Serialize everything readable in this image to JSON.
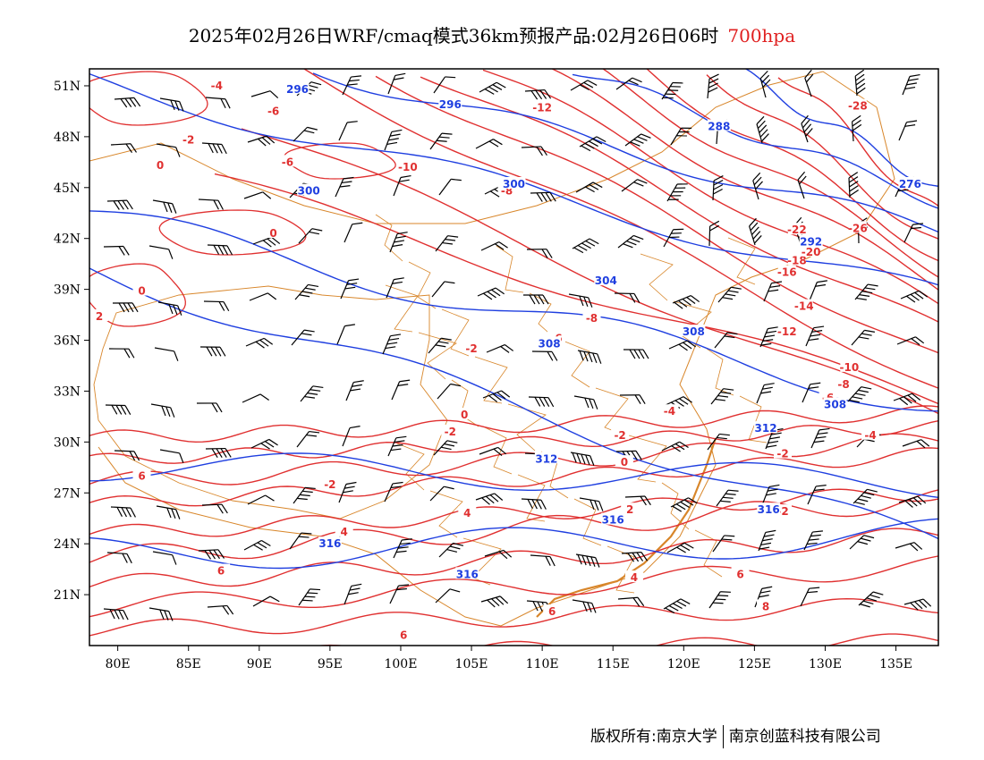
{
  "title": {
    "main": "2025年02月26日WRF/cmaq模式36km预报产品:02月26日06时",
    "level": "700hpa"
  },
  "colors": {
    "temperature": "#e03030",
    "height": "#1f3fe0",
    "boundary": "#d8862a",
    "wind": "#000000"
  },
  "axes": {
    "lat_labels": [
      "51N",
      "48N",
      "45N",
      "42N",
      "39N",
      "36N",
      "33N",
      "30N",
      "27N",
      "24N",
      "21N"
    ],
    "lat_values": [
      51,
      48,
      45,
      42,
      39,
      36,
      33,
      30,
      27,
      24,
      21
    ],
    "lon_labels": [
      "80E",
      "85E",
      "90E",
      "95E",
      "100E",
      "105E",
      "110E",
      "115E",
      "120E",
      "125E",
      "130E",
      "135E"
    ],
    "lon_values": [
      80,
      85,
      90,
      95,
      100,
      105,
      110,
      115,
      120,
      125,
      130,
      135
    ],
    "lon_range": [
      78,
      138
    ],
    "lat_range": [
      18,
      52
    ]
  },
  "temperature_labels": [
    {
      "text": "-4",
      "lon": 87.0,
      "lat": 51.0
    },
    {
      "text": "-6",
      "lon": 91.0,
      "lat": 49.5
    },
    {
      "text": "-2",
      "lon": 85.0,
      "lat": 47.8
    },
    {
      "text": "0",
      "lon": 83.0,
      "lat": 46.3
    },
    {
      "text": "-6",
      "lon": 92.0,
      "lat": 46.5
    },
    {
      "text": "-10",
      "lon": 100.5,
      "lat": 46.2
    },
    {
      "text": "-8",
      "lon": 107.5,
      "lat": 44.8
    },
    {
      "text": "-12",
      "lon": 110.0,
      "lat": 49.7
    },
    {
      "text": "0",
      "lon": 91.0,
      "lat": 42.3
    },
    {
      "text": "0",
      "lon": 81.7,
      "lat": 38.9
    },
    {
      "text": "2",
      "lon": 78.7,
      "lat": 37.4
    },
    {
      "text": "-2",
      "lon": 105.0,
      "lat": 35.5
    },
    {
      "text": "-6",
      "lon": 111.0,
      "lat": 36.1
    },
    {
      "text": "-8",
      "lon": 113.5,
      "lat": 37.3
    },
    {
      "text": "0",
      "lon": 104.5,
      "lat": 31.6
    },
    {
      "text": "-2",
      "lon": 103.5,
      "lat": 30.6
    },
    {
      "text": "-4",
      "lon": 119.0,
      "lat": 31.8
    },
    {
      "text": "-2",
      "lon": 115.5,
      "lat": 30.4
    },
    {
      "text": "0",
      "lon": 115.8,
      "lat": 28.8
    },
    {
      "text": "-2",
      "lon": 95.0,
      "lat": 27.5
    },
    {
      "text": "6",
      "lon": 81.7,
      "lat": 28.0
    },
    {
      "text": "4",
      "lon": 96.0,
      "lat": 24.7
    },
    {
      "text": "4",
      "lon": 104.7,
      "lat": 25.8
    },
    {
      "text": "6",
      "lon": 87.3,
      "lat": 22.4
    },
    {
      "text": "2",
      "lon": 116.2,
      "lat": 26.0
    },
    {
      "text": "4",
      "lon": 116.5,
      "lat": 22.0
    },
    {
      "text": "6",
      "lon": 110.7,
      "lat": 20.0
    },
    {
      "text": "6",
      "lon": 100.2,
      "lat": 18.6
    },
    {
      "text": "6",
      "lon": 124.0,
      "lat": 22.2
    },
    {
      "text": "8",
      "lon": 125.8,
      "lat": 20.3
    },
    {
      "text": "-2",
      "lon": 127.0,
      "lat": 25.9
    },
    {
      "text": "-2",
      "lon": 127.0,
      "lat": 29.3
    },
    {
      "text": "-4",
      "lon": 133.2,
      "lat": 30.4
    },
    {
      "text": "-6",
      "lon": 130.2,
      "lat": 32.6
    },
    {
      "text": "-8",
      "lon": 131.3,
      "lat": 33.4
    },
    {
      "text": "-10",
      "lon": 131.7,
      "lat": 34.4
    },
    {
      "text": "-12",
      "lon": 127.3,
      "lat": 36.5
    },
    {
      "text": "-14",
      "lon": 128.5,
      "lat": 38.0
    },
    {
      "text": "-16",
      "lon": 127.3,
      "lat": 40.0
    },
    {
      "text": "-18",
      "lon": 128.0,
      "lat": 40.7
    },
    {
      "text": "-20",
      "lon": 129.0,
      "lat": 41.2
    },
    {
      "text": "-22",
      "lon": 128.0,
      "lat": 42.5
    },
    {
      "text": "-26",
      "lon": 132.3,
      "lat": 42.6
    },
    {
      "text": "-28",
      "lon": 132.3,
      "lat": 49.8
    }
  ],
  "height_labels": [
    {
      "text": "296",
      "lon": 92.7,
      "lat": 50.8
    },
    {
      "text": "296",
      "lon": 103.5,
      "lat": 49.9
    },
    {
      "text": "288",
      "lon": 122.5,
      "lat": 48.6
    },
    {
      "text": "276",
      "lon": 136.0,
      "lat": 45.2
    },
    {
      "text": "300",
      "lon": 93.5,
      "lat": 44.8
    },
    {
      "text": "300",
      "lon": 108.0,
      "lat": 45.2
    },
    {
      "text": "292",
      "lon": 129.0,
      "lat": 41.8
    },
    {
      "text": "304",
      "lon": 114.5,
      "lat": 39.5
    },
    {
      "text": "308",
      "lon": 110.5,
      "lat": 35.8
    },
    {
      "text": "308",
      "lon": 120.7,
      "lat": 36.5
    },
    {
      "text": "308",
      "lon": 130.7,
      "lat": 32.2
    },
    {
      "text": "312",
      "lon": 110.3,
      "lat": 29.0
    },
    {
      "text": "312",
      "lon": 125.8,
      "lat": 30.8
    },
    {
      "text": "316",
      "lon": 115.0,
      "lat": 25.4
    },
    {
      "text": "316",
      "lon": 126.0,
      "lat": 26.0
    },
    {
      "text": "316",
      "lon": 95.0,
      "lat": 24.0
    },
    {
      "text": "316",
      "lon": 104.7,
      "lat": 22.2
    }
  ],
  "footer": {
    "left": "版权所有:南京大学",
    "right": "南京创蓝科技有限公司"
  }
}
